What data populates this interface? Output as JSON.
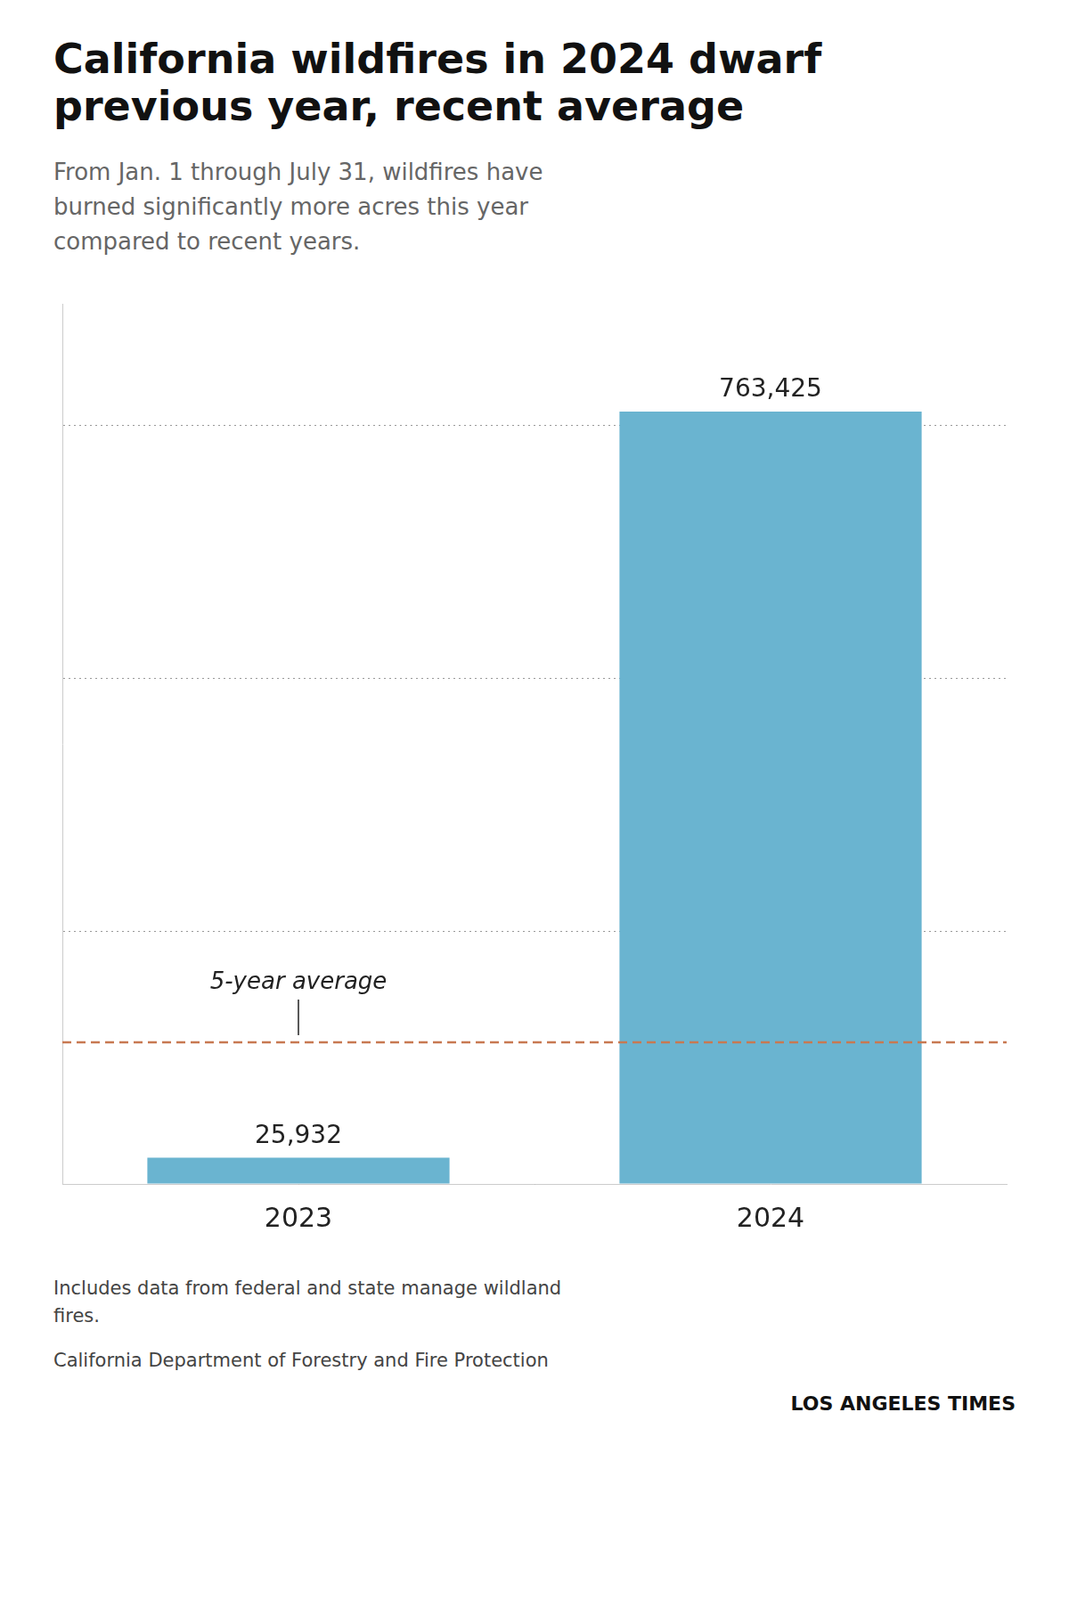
{
  "chart_data": {
    "type": "bar",
    "title": "California wildfires in 2024 dwarf\nprevious year, recent average",
    "subtitle": "From Jan. 1 through July 31, wildfires have\nburned significantly more acres this year\ncompared to recent years.",
    "categories": [
      "2023",
      "2024"
    ],
    "values": [
      25932,
      763425
    ],
    "value_labels": [
      "25,932",
      "763,425"
    ],
    "data_labels": true,
    "color": "#6ab4d0",
    "ylim": [
      0,
      870000
    ],
    "yticks": [
      0,
      250000,
      500000,
      750000
    ],
    "grid": true,
    "tick_labels": "x",
    "reference_line": {
      "value": 140000,
      "label": "5-year average",
      "color": "#c87952"
    },
    "footnotes": [
      "Includes data from federal and state manage wildland\nfires.",
      "California Department of Forestry and Fire Protection"
    ],
    "source": "LOS ANGELES TIMES"
  }
}
